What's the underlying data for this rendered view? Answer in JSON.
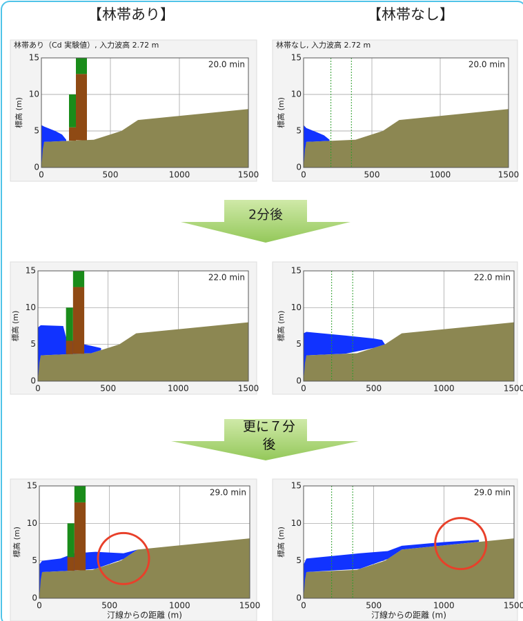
{
  "headers": [
    "【林帯あり】",
    "【林帯なし】"
  ],
  "arrows": [
    "2分後",
    "更に７分後"
  ],
  "chart_data": [
    {
      "type": "profile",
      "title": "林帯あり（Cd 実験値）, 入力波高 2.72 m",
      "time_label": "20.0 min",
      "y_label": "標高 (m)",
      "xlim": [
        0,
        1500
      ],
      "ylim": [
        0,
        15
      ],
      "xticks": [
        0,
        500,
        1000,
        1500
      ],
      "yticks": [
        0,
        5,
        10,
        15
      ],
      "ground": {
        "color": "#8c8752",
        "x": [
          0,
          10,
          20,
          380,
          580,
          700,
          1500
        ],
        "y": [
          0,
          2.5,
          3.5,
          3.8,
          5,
          6.5,
          8
        ]
      },
      "water": {
        "color": "#1133ff",
        "x": [
          0,
          20,
          100,
          150,
          180
        ],
        "y": [
          5.8,
          5.6,
          5,
          4.5,
          3.8
        ]
      },
      "forest": {
        "crown_color": "#1a8c1a",
        "trunk_color": "#8f4a14",
        "stands": [
          {
            "x0": 200,
            "x1": 250,
            "trunk_top": 5.5,
            "crown_top": 10
          },
          {
            "x0": 250,
            "x1": 330,
            "trunk_top": 12.8,
            "crown_top": 15
          }
        ]
      }
    },
    {
      "type": "profile",
      "title": "林帯なし, 入力波高 2.72 m",
      "time_label": "20.0 min",
      "y_label": "標高 (m)",
      "xlim": [
        0,
        1500
      ],
      "ylim": [
        0,
        15
      ],
      "xticks": [
        0,
        500,
        1000,
        1500
      ],
      "yticks": [
        0,
        5,
        10,
        15
      ],
      "ground": {
        "color": "#8c8752",
        "x": [
          0,
          10,
          20,
          380,
          580,
          700,
          1500
        ],
        "y": [
          0,
          2.5,
          3.5,
          3.8,
          5,
          6.5,
          8
        ]
      },
      "water": {
        "color": "#1133ff",
        "x": [
          0,
          20,
          100,
          150,
          190
        ],
        "y": [
          5.8,
          5.4,
          4.8,
          4.4,
          3.8
        ]
      },
      "forest_edges": {
        "color": "#2a9d2a",
        "x": [
          200,
          350
        ]
      }
    },
    {
      "type": "profile",
      "time_label": "22.0 min",
      "y_label": "標高 (m)",
      "xlim": [
        0,
        1500
      ],
      "ylim": [
        0,
        15
      ],
      "xticks": [
        0,
        500,
        1000,
        1500
      ],
      "yticks": [
        0,
        5,
        10,
        15
      ],
      "ground": {
        "color": "#8c8752",
        "x": [
          0,
          10,
          20,
          380,
          580,
          700,
          1500
        ],
        "y": [
          0,
          2.5,
          3.5,
          3.8,
          5,
          6.5,
          8
        ]
      },
      "water": {
        "color": "#1133ff",
        "x": [
          0,
          20,
          180,
          200,
          250,
          330,
          380,
          450
        ],
        "y": [
          7.3,
          7.6,
          7.5,
          6,
          5.5,
          5,
          4.8,
          4.5
        ]
      },
      "forest": {
        "crown_color": "#1a8c1a",
        "trunk_color": "#8f4a14",
        "stands": [
          {
            "x0": 200,
            "x1": 250,
            "trunk_top": 5.5,
            "crown_top": 10
          },
          {
            "x0": 250,
            "x1": 330,
            "trunk_top": 12.8,
            "crown_top": 15
          }
        ]
      }
    },
    {
      "type": "profile",
      "time_label": "22.0 min",
      "y_label": "標高 (m)",
      "xlim": [
        0,
        1500
      ],
      "ylim": [
        0,
        15
      ],
      "xticks": [
        0,
        500,
        1000,
        1500
      ],
      "yticks": [
        0,
        5,
        10,
        15
      ],
      "ground": {
        "color": "#8c8752",
        "x": [
          0,
          10,
          20,
          380,
          580,
          700,
          1500
        ],
        "y": [
          0,
          2.5,
          3.5,
          3.8,
          5,
          6.5,
          8
        ]
      },
      "water": {
        "color": "#1133ff",
        "x": [
          0,
          20,
          300,
          500,
          560,
          580
        ],
        "y": [
          6.5,
          6.7,
          6.2,
          5.8,
          5.6,
          5
        ]
      },
      "forest_edges": {
        "color": "#2a9d2a",
        "x": [
          200,
          350
        ]
      }
    },
    {
      "type": "profile",
      "time_label": "29.0 min",
      "y_label": "標高 (m)",
      "x_label": "汀線からの距離 (m)",
      "xlim": [
        0,
        1500
      ],
      "ylim": [
        0,
        15
      ],
      "xticks": [
        0,
        500,
        1000,
        1500
      ],
      "yticks": [
        0,
        5,
        10,
        15
      ],
      "ground": {
        "color": "#8c8752",
        "x": [
          0,
          10,
          20,
          380,
          580,
          700,
          1500
        ],
        "y": [
          0,
          2.5,
          3.5,
          3.8,
          5,
          6.5,
          8
        ]
      },
      "water": {
        "color": "#1133ff",
        "x": [
          0,
          20,
          150,
          250,
          400,
          600,
          700
        ],
        "y": [
          4.5,
          5,
          5.3,
          6,
          6.2,
          6,
          6.5
        ]
      },
      "forest": {
        "crown_color": "#1a8c1a",
        "trunk_color": "#8f4a14",
        "stands": [
          {
            "x0": 200,
            "x1": 250,
            "trunk_top": 5.5,
            "crown_top": 10
          },
          {
            "x0": 250,
            "x1": 330,
            "trunk_top": 12.8,
            "crown_top": 15
          }
        ]
      },
      "highlight": {
        "color": "#e8402a",
        "x": 600,
        "y": 5.3
      }
    },
    {
      "type": "profile",
      "time_label": "29.0 min",
      "y_label": "標高 (m)",
      "x_label": "汀線からの距離 (m)",
      "xlim": [
        0,
        1500
      ],
      "ylim": [
        0,
        15
      ],
      "xticks": [
        0,
        500,
        1000,
        1500
      ],
      "yticks": [
        0,
        5,
        10,
        15
      ],
      "ground": {
        "color": "#8c8752",
        "x": [
          0,
          10,
          20,
          380,
          580,
          700,
          1500
        ],
        "y": [
          0,
          2.5,
          3.5,
          3.8,
          5,
          6.5,
          8
        ]
      },
      "water": {
        "color": "#1133ff",
        "x": [
          0,
          20,
          400,
          600,
          700,
          1000,
          1250
        ],
        "y": [
          4.5,
          5.3,
          6,
          6.3,
          7,
          7.5,
          7.8
        ]
      },
      "forest_edges": {
        "color": "#2a9d2a",
        "x": [
          200,
          350
        ]
      },
      "highlight": {
        "color": "#e8402a",
        "x": 1120,
        "y": 7.3
      }
    }
  ]
}
